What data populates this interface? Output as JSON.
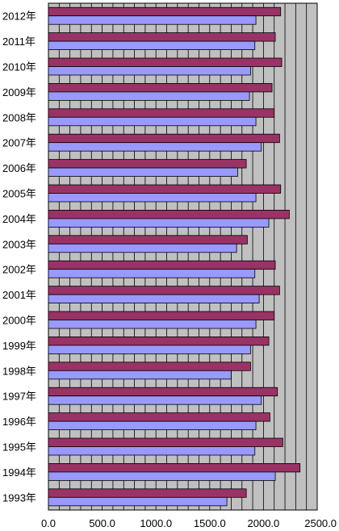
{
  "chart_data": {
    "type": "bar",
    "orientation": "horizontal",
    "title": "",
    "xlabel": "",
    "ylabel": "",
    "xlim": [
      0,
      2500
    ],
    "grid": true,
    "legend": "none",
    "categories": [
      "2012年",
      "2011年",
      "2010年",
      "2009年",
      "2008年",
      "2007年",
      "2006年",
      "2005年",
      "2004年",
      "2003年",
      "2002年",
      "2001年",
      "2000年",
      "1999年",
      "1998年",
      "1997年",
      "1996年",
      "1995年",
      "1994年",
      "1993年"
    ],
    "x_ticks": [
      "0.0",
      "500.0",
      "1000.0",
      "1500.0",
      "2000.0",
      "2500.0"
    ],
    "series": [
      {
        "color": "#993366",
        "values": [
          2160,
          2110,
          2170,
          2080,
          2100,
          2150,
          1840,
          2160,
          2240,
          1850,
          2110,
          2150,
          2100,
          2050,
          1880,
          2130,
          2060,
          2180,
          2340,
          1840
        ]
      },
      {
        "color": "#9999ff",
        "values": [
          1930,
          1920,
          1880,
          1870,
          1930,
          1980,
          1760,
          1930,
          2050,
          1750,
          1920,
          1960,
          1930,
          1880,
          1700,
          1980,
          1930,
          1920,
          2110,
          1660
        ]
      }
    ],
    "plot_background": "#c0c0c0",
    "bar_outline": "#000000"
  }
}
